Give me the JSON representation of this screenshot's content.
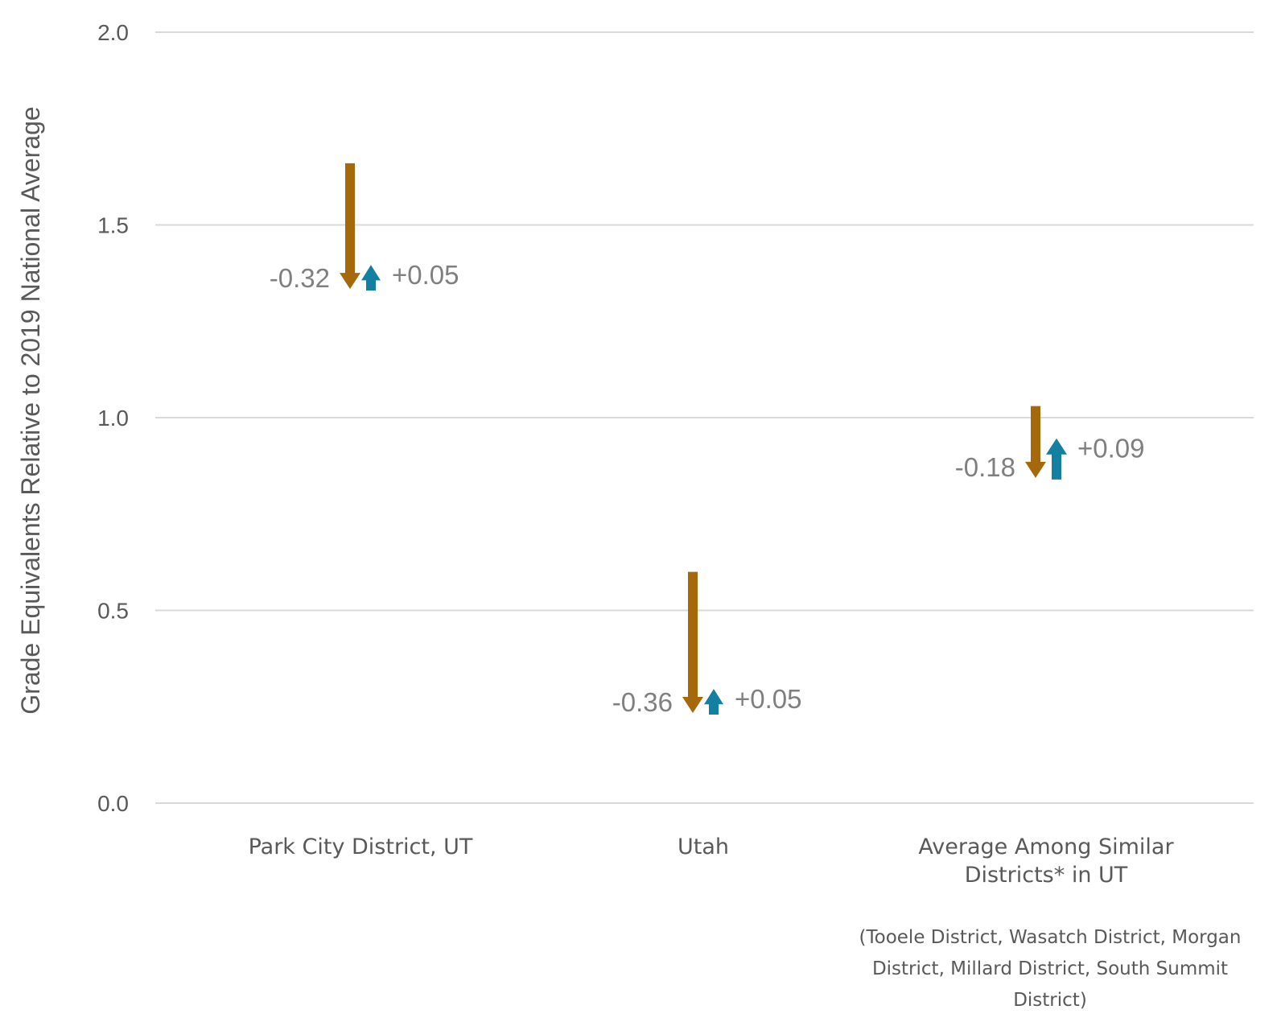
{
  "chart_data": {
    "type": "arrow",
    "ylabel": "Grade Equivalents Relative to 2019 National Average",
    "xlabel": "",
    "ylim": [
      0,
      2.0
    ],
    "yticks": [
      "0.0",
      "0.5",
      "1.0",
      "1.5",
      "2.0"
    ],
    "ytick_values": [
      0,
      0.5,
      1.0,
      1.5,
      2.0
    ],
    "grid": true,
    "categories": [
      [
        "Park City District, UT"
      ],
      [
        "Utah"
      ],
      [
        "Average Among Similar",
        "Districts* in UT"
      ]
    ],
    "points": [
      {
        "start": 1.66,
        "after_decline": 1.34,
        "after_recovery": 1.39,
        "decline_label": "-0.32",
        "recovery_label": "+0.05"
      },
      {
        "start": 0.6,
        "after_decline": 0.24,
        "after_recovery": 0.29,
        "decline_label": "-0.36",
        "recovery_label": "+0.05"
      },
      {
        "start": 1.03,
        "after_decline": 0.85,
        "after_recovery": 0.94,
        "decline_label": "-0.18",
        "recovery_label": "+0.09"
      }
    ],
    "footnote_lines": [
      "(Tooele District, Wasatch District, Morgan",
      "District, Millard District, South Summit",
      "District)"
    ],
    "colors": {
      "decline": "#A5680A",
      "recovery": "#1380A1",
      "grid": "#D9D9D9",
      "text": "#595959",
      "value_text": "#7F7F7F"
    }
  }
}
